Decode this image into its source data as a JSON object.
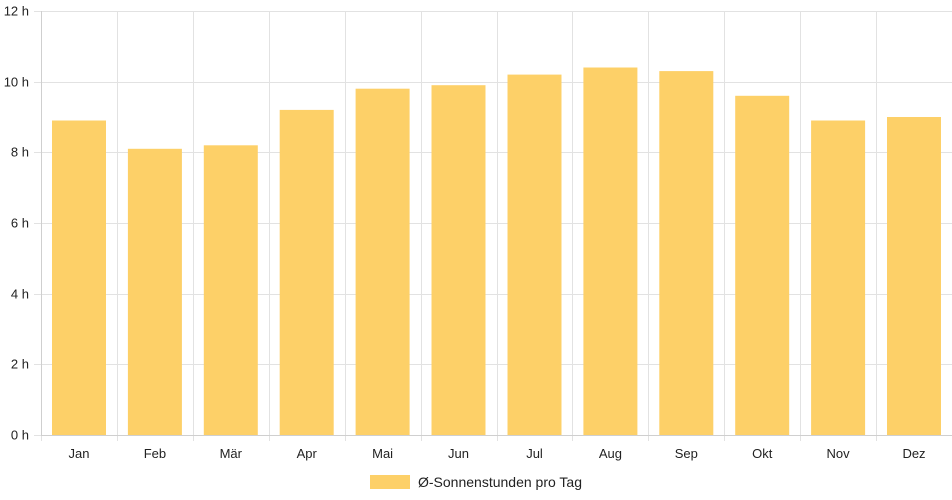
{
  "chart_data": {
    "type": "bar",
    "title": "",
    "xlabel": "",
    "ylabel": "",
    "categories": [
      "Jan",
      "Feb",
      "Mär",
      "Apr",
      "Mai",
      "Jun",
      "Jul",
      "Aug",
      "Sep",
      "Okt",
      "Nov",
      "Dez"
    ],
    "series": [
      {
        "name": "Ø-Sonnenstunden pro Tag",
        "values": [
          8.9,
          8.1,
          8.2,
          9.2,
          9.8,
          9.9,
          10.2,
          10.4,
          10.3,
          9.6,
          8.9,
          9.0
        ],
        "color": "#fdd068"
      }
    ],
    "ylim": [
      0,
      12
    ],
    "yticks": [
      0,
      2,
      4,
      6,
      8,
      10,
      12
    ],
    "ytick_suffix": " h",
    "ytick_labels": [
      "0 h",
      "2 h",
      "4 h",
      "6 h",
      "8 h",
      "10 h",
      "12 h"
    ],
    "grid": true,
    "legend_position": "bottom-center"
  }
}
